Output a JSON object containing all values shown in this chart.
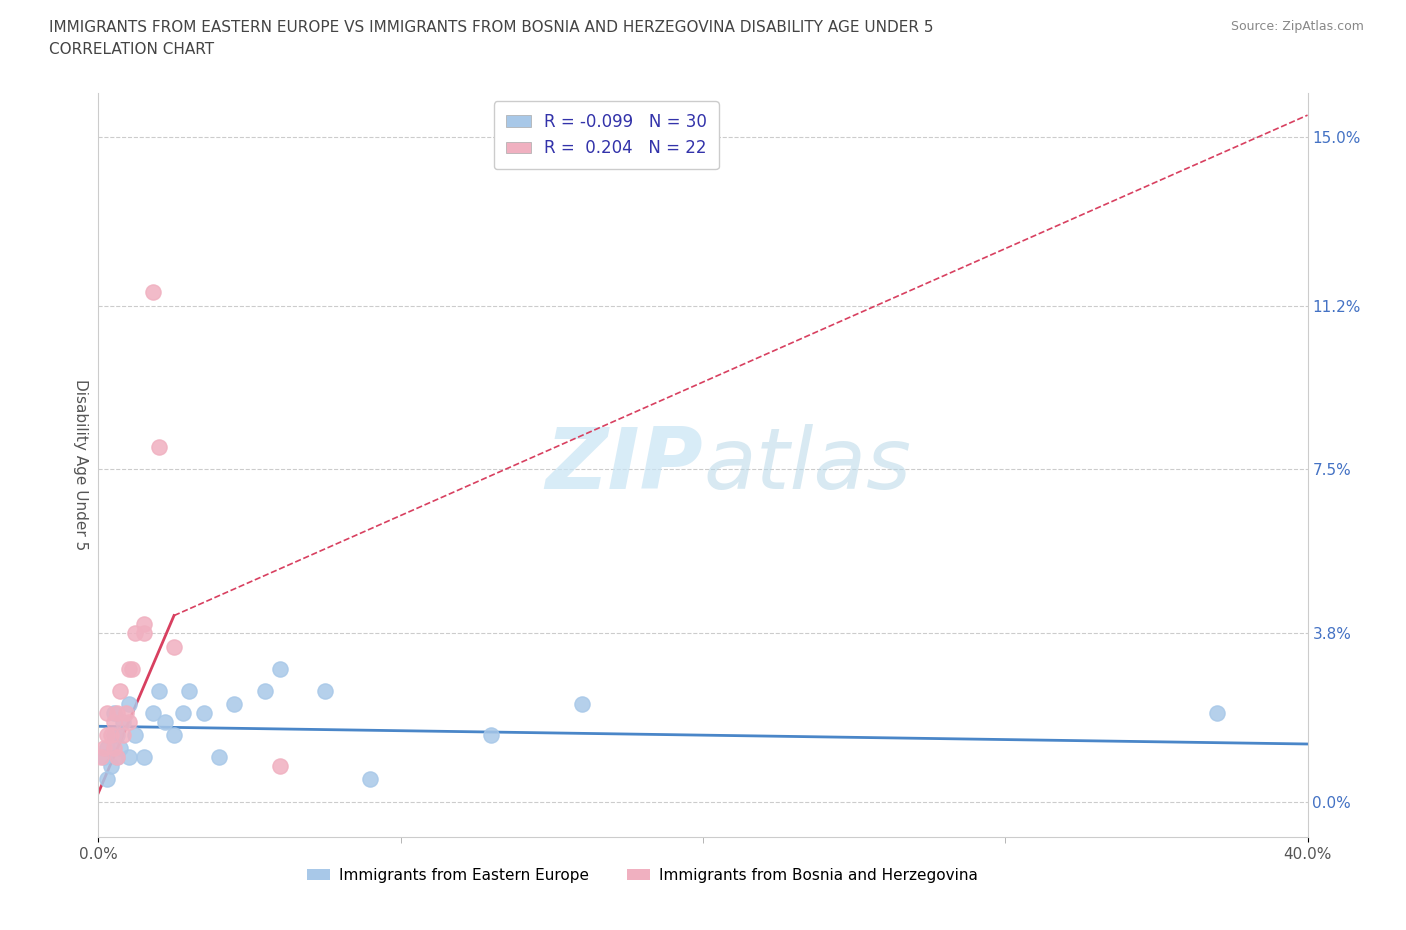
{
  "title_line1": "IMMIGRANTS FROM EASTERN EUROPE VS IMMIGRANTS FROM BOSNIA AND HERZEGOVINA DISABILITY AGE UNDER 5",
  "title_line2": "CORRELATION CHART",
  "source": "Source: ZipAtlas.com",
  "ylabel": "Disability Age Under 5",
  "xlim": [
    0.0,
    0.4
  ],
  "ylim": [
    -0.008,
    0.16
  ],
  "yticks": [
    0.0,
    0.038,
    0.075,
    0.112,
    0.15
  ],
  "ytick_labels": [
    "0.0%",
    "3.8%",
    "7.5%",
    "11.2%",
    "15.0%"
  ],
  "xtick_positions": [
    0.0,
    0.4
  ],
  "xtick_labels": [
    "0.0%",
    "40.0%"
  ],
  "legend_labels": [
    "Immigrants from Eastern Europe",
    "Immigrants from Bosnia and Herzegovina"
  ],
  "legend_R": [
    "-0.099",
    "0.204"
  ],
  "legend_N": [
    "30",
    "22"
  ],
  "color_eastern": "#a8c8e8",
  "color_bosnia": "#f0b0c0",
  "trendline_color_eastern": "#4a86c8",
  "trendline_color_bosnia": "#d84060",
  "watermark_color": "#c8e4f4",
  "eastern_x": [
    0.002,
    0.003,
    0.003,
    0.004,
    0.005,
    0.005,
    0.006,
    0.006,
    0.007,
    0.008,
    0.01,
    0.01,
    0.012,
    0.015,
    0.018,
    0.02,
    0.022,
    0.025,
    0.028,
    0.03,
    0.035,
    0.04,
    0.045,
    0.055,
    0.06,
    0.075,
    0.09,
    0.13,
    0.16,
    0.37
  ],
  "eastern_y": [
    0.01,
    0.005,
    0.012,
    0.008,
    0.015,
    0.02,
    0.01,
    0.015,
    0.012,
    0.018,
    0.01,
    0.022,
    0.015,
    0.01,
    0.02,
    0.025,
    0.018,
    0.015,
    0.02,
    0.025,
    0.02,
    0.01,
    0.022,
    0.025,
    0.03,
    0.025,
    0.005,
    0.015,
    0.022,
    0.02
  ],
  "bosnia_x": [
    0.001,
    0.002,
    0.003,
    0.003,
    0.004,
    0.005,
    0.005,
    0.006,
    0.006,
    0.007,
    0.008,
    0.009,
    0.01,
    0.01,
    0.011,
    0.012,
    0.015,
    0.015,
    0.018,
    0.02,
    0.025,
    0.06
  ],
  "bosnia_y": [
    0.01,
    0.012,
    0.015,
    0.02,
    0.015,
    0.012,
    0.018,
    0.01,
    0.02,
    0.025,
    0.015,
    0.02,
    0.018,
    0.03,
    0.03,
    0.038,
    0.038,
    0.04,
    0.115,
    0.08,
    0.035,
    0.008
  ],
  "trendline_eastern_x0": 0.0,
  "trendline_eastern_x1": 0.4,
  "trendline_eastern_y0": 0.017,
  "trendline_eastern_y1": 0.013,
  "trendline_bosnia_solid_x0": 0.0,
  "trendline_bosnia_solid_x1": 0.025,
  "trendline_bosnia_solid_y0": 0.002,
  "trendline_bosnia_solid_y1": 0.042,
  "trendline_bosnia_dash_x0": 0.025,
  "trendline_bosnia_dash_x1": 0.4,
  "trendline_bosnia_dash_y0": 0.042,
  "trendline_bosnia_dash_y1": 0.155
}
